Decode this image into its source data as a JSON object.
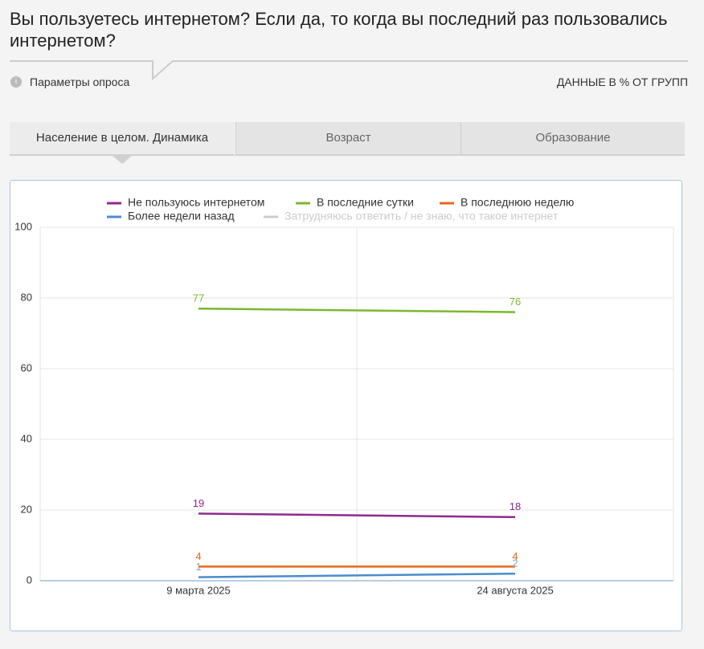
{
  "header": {
    "title": "Вы пользуетесь интернетом? Если да, то когда вы последний раз пользовались интернетом?",
    "params": "Параметры опроса",
    "units": "ДАННЫЕ В % ОТ ГРУПП"
  },
  "tabs": [
    "Население в целом. Динамика",
    "Возраст",
    "Образование"
  ],
  "chart_data": {
    "type": "line",
    "categories": [
      "9 марта 2025",
      "24 августа 2025"
    ],
    "series": [
      {
        "name": "Не пользуюсь интернетом",
        "color": "#8e2a8e",
        "values": [
          19,
          18
        ]
      },
      {
        "name": "В последние сутки",
        "color": "#7cb82f",
        "values": [
          77,
          76
        ]
      },
      {
        "name": "В последнюю неделю",
        "color": "#e8681a",
        "values": [
          4,
          4
        ]
      },
      {
        "name": "Более недели назад",
        "color": "#4a8ccc",
        "values": [
          1,
          2
        ]
      },
      {
        "name": "Затрудняюсь ответить / не знаю, что такое интернет",
        "color": "#cccccc",
        "values": [
          null,
          null
        ]
      }
    ],
    "ylim": [
      0,
      100
    ],
    "yticks": [
      0,
      20,
      40,
      60,
      80,
      100
    ],
    "grid": true
  }
}
